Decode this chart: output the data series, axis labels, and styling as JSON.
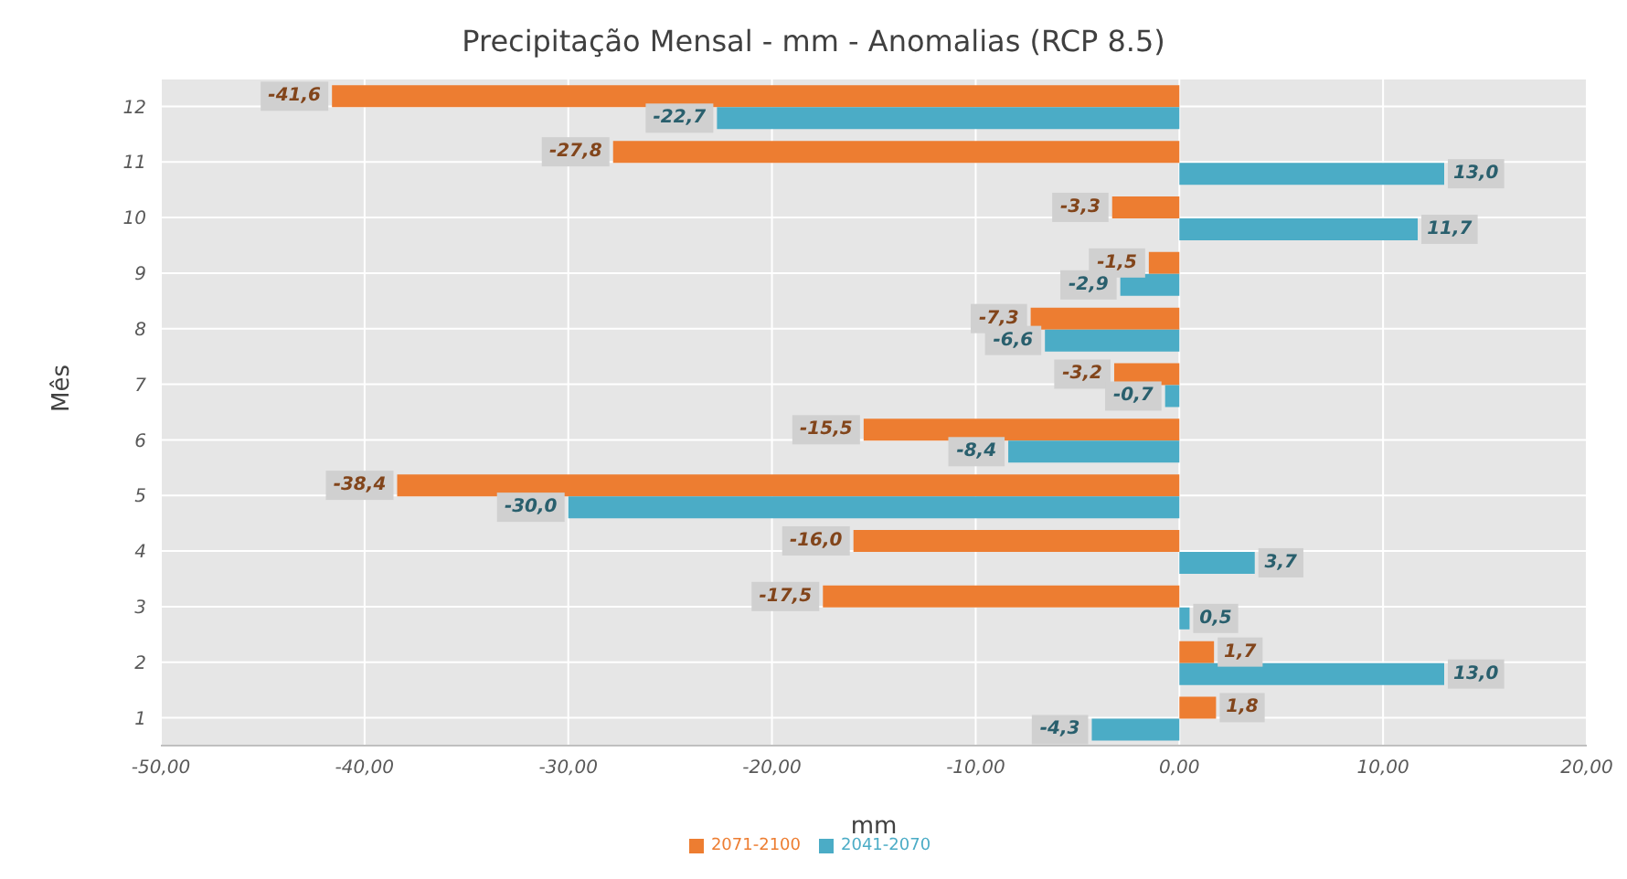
{
  "chart_data": {
    "type": "bar",
    "orientation": "horizontal",
    "title": "Precipitação Mensal - mm - Anomalias (RCP 8.5)",
    "xlabel": "mm",
    "ylabel": "Mês",
    "categories": [
      "12",
      "11",
      "10",
      "9",
      "8",
      "7",
      "6",
      "5",
      "4",
      "3",
      "2",
      "1"
    ],
    "series": [
      {
        "name": "2071-2100",
        "color": "#ed7d31",
        "values": [
          -41.6,
          -27.8,
          -3.3,
          -1.5,
          -7.3,
          -3.2,
          -15.5,
          -38.4,
          -16.0,
          -17.5,
          1.7,
          1.8
        ],
        "value_labels": [
          "-41,6",
          "-27,8",
          "-3,3",
          "-1,5",
          "-7,3",
          "-3,2",
          "-15,5",
          "-38,4",
          "-16,0",
          "-17,5",
          "1,7",
          "1,8"
        ]
      },
      {
        "name": "2041-2070",
        "color": "#4bacc6",
        "values": [
          -22.7,
          13.0,
          11.7,
          -2.9,
          -6.6,
          -0.7,
          -8.4,
          -30.0,
          3.7,
          0.5,
          13.0,
          -4.3
        ],
        "value_labels": [
          "-22,7",
          "13,0",
          "11,7",
          "-2,9",
          "-6,6",
          "-0,7",
          "-8,4",
          "-30,0",
          "3,7",
          "0,5",
          "13,0",
          "-4,3"
        ]
      }
    ],
    "xlim": [
      -50,
      20
    ],
    "xticks": [
      {
        "value": -50,
        "label": "-50,00"
      },
      {
        "value": -40,
        "label": "-40,00"
      },
      {
        "value": -30,
        "label": "-30,00"
      },
      {
        "value": -20,
        "label": "-20,00"
      },
      {
        "value": -10,
        "label": "-10,00"
      },
      {
        "value": 0,
        "label": "0,00"
      },
      {
        "value": 10,
        "label": "10,00"
      },
      {
        "value": 20,
        "label": "20,00"
      }
    ],
    "grid": true,
    "legend": "bottom"
  }
}
